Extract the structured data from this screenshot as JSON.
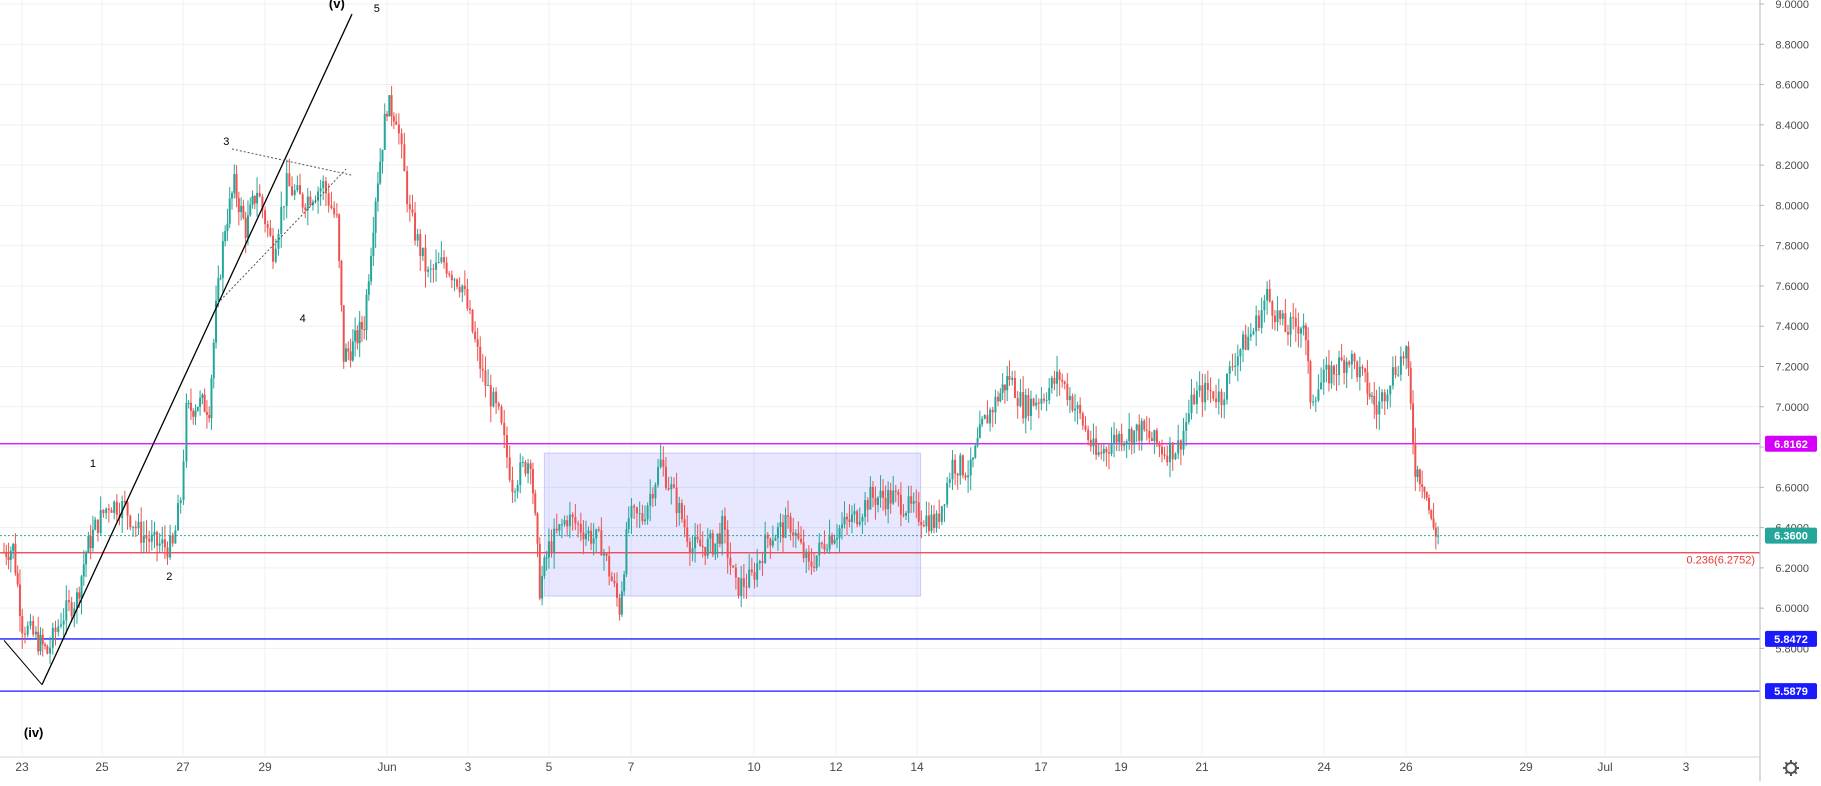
{
  "chart_data": {
    "type": "candlestick",
    "ylim": [
      5.39,
      9.0
    ],
    "grid": true,
    "y_ticks": [
      "5.8000",
      "6.0000",
      "6.2000",
      "6.4000",
      "6.6000",
      "6.8000",
      "7.0000",
      "7.2000",
      "7.4000",
      "7.6000",
      "7.8000",
      "8.0000",
      "8.2000",
      "8.4000",
      "8.6000",
      "8.8000",
      "9.0000"
    ],
    "x_ticks": [
      "23",
      "25",
      "27",
      "29",
      "Jun",
      "3",
      "5",
      "7",
      "10",
      "12",
      "14",
      "17",
      "19",
      "21",
      "24",
      "26",
      "29",
      "Jul",
      "3"
    ],
    "price_path": [
      [
        0,
        6.28
      ],
      [
        8,
        6.3
      ],
      [
        16,
        5.92
      ],
      [
        28,
        5.85
      ],
      [
        38,
        5.78
      ],
      [
        50,
        5.95
      ],
      [
        64,
        6.05
      ],
      [
        72,
        6.28
      ],
      [
        80,
        6.4
      ],
      [
        92,
        6.52
      ],
      [
        106,
        6.5
      ],
      [
        118,
        6.38
      ],
      [
        132,
        6.32
      ],
      [
        148,
        6.3
      ],
      [
        155,
        6.55
      ],
      [
        160,
        6.97
      ],
      [
        170,
        7.02
      ],
      [
        180,
        7.0
      ],
      [
        186,
        7.48
      ],
      [
        194,
        7.9
      ],
      [
        202,
        8.1
      ],
      [
        212,
        7.88
      ],
      [
        222,
        8.08
      ],
      [
        236,
        7.78
      ],
      [
        248,
        8.1
      ],
      [
        262,
        8.02
      ],
      [
        280,
        8.1
      ],
      [
        292,
        7.92
      ],
      [
        298,
        7.25
      ],
      [
        306,
        7.3
      ],
      [
        316,
        7.42
      ],
      [
        326,
        8.05
      ],
      [
        336,
        8.5
      ],
      [
        344,
        8.45
      ],
      [
        356,
        7.95
      ],
      [
        372,
        7.65
      ],
      [
        386,
        7.72
      ],
      [
        402,
        7.6
      ],
      [
        420,
        7.15
      ],
      [
        434,
        6.95
      ],
      [
        446,
        6.62
      ],
      [
        462,
        6.75
      ],
      [
        470,
        6.1
      ],
      [
        478,
        6.3
      ],
      [
        494,
        6.45
      ],
      [
        506,
        6.4
      ],
      [
        524,
        6.32
      ],
      [
        540,
        6.0
      ],
      [
        548,
        6.45
      ],
      [
        560,
        6.45
      ],
      [
        576,
        6.72
      ],
      [
        590,
        6.52
      ],
      [
        604,
        6.3
      ],
      [
        624,
        6.32
      ],
      [
        630,
        6.4
      ],
      [
        642,
        6.1
      ],
      [
        656,
        6.15
      ],
      [
        670,
        6.35
      ],
      [
        690,
        6.42
      ],
      [
        706,
        6.2
      ],
      [
        722,
        6.35
      ],
      [
        746,
        6.45
      ],
      [
        760,
        6.55
      ],
      [
        780,
        6.55
      ],
      [
        798,
        6.48
      ],
      [
        818,
        6.42
      ],
      [
        832,
        6.72
      ],
      [
        848,
        6.68
      ],
      [
        858,
        6.9
      ],
      [
        872,
        7.05
      ],
      [
        882,
        7.15
      ],
      [
        894,
        7.0
      ],
      [
        910,
        7.05
      ],
      [
        926,
        7.15
      ],
      [
        944,
        6.95
      ],
      [
        958,
        6.75
      ],
      [
        976,
        6.85
      ],
      [
        998,
        6.88
      ],
      [
        1018,
        6.78
      ],
      [
        1030,
        6.8
      ],
      [
        1044,
        7.05
      ],
      [
        1056,
        7.08
      ],
      [
        1068,
        7.05
      ],
      [
        1080,
        7.25
      ],
      [
        1096,
        7.38
      ],
      [
        1108,
        7.55
      ],
      [
        1124,
        7.38
      ],
      [
        1140,
        7.42
      ],
      [
        1146,
        7.05
      ],
      [
        1160,
        7.15
      ],
      [
        1180,
        7.25
      ],
      [
        1194,
        7.12
      ],
      [
        1204,
        6.98
      ],
      [
        1216,
        7.15
      ],
      [
        1230,
        7.28
      ],
      [
        1238,
        6.7
      ],
      [
        1246,
        6.62
      ],
      [
        1252,
        6.42
      ],
      [
        1258,
        6.36
      ]
    ],
    "horizontal_lines": [
      {
        "price": 6.8162,
        "label": "6.8162",
        "color": "#d500f9"
      },
      {
        "price": 6.36,
        "label": "6.3600",
        "color": "#26a69a"
      },
      {
        "price": 6.2752,
        "label": "0.236(6.2752)",
        "color": "#f23645"
      },
      {
        "price": 5.8472,
        "label": "5.8472",
        "color": "#1a1aff"
      },
      {
        "price": 5.5879,
        "label": "5.5879",
        "color": "#1a1aff"
      }
    ],
    "consolidation_box": {
      "from_x": 474,
      "to_x": 804,
      "high": 6.77,
      "low": 6.06
    },
    "wave_labels": [
      {
        "text": "1",
        "major": false,
        "x": 78,
        "price": 6.72
      },
      {
        "text": "2",
        "major": false,
        "x": 145,
        "price": 6.16
      },
      {
        "text": "3",
        "major": false,
        "x": 195,
        "price": 8.32
      },
      {
        "text": "4",
        "major": false,
        "x": 262,
        "price": 7.44
      },
      {
        "text": "5",
        "major": false,
        "x": 327,
        "price": 8.98
      },
      {
        "text": "(iv)",
        "major": true,
        "x": 26,
        "price": 5.38
      },
      {
        "text": "(v)",
        "major": true,
        "x": 292,
        "price": 9.0
      }
    ],
    "colors": {
      "up": "#26a69a",
      "down": "#ef5350",
      "grid": "#eef0f3"
    }
  }
}
